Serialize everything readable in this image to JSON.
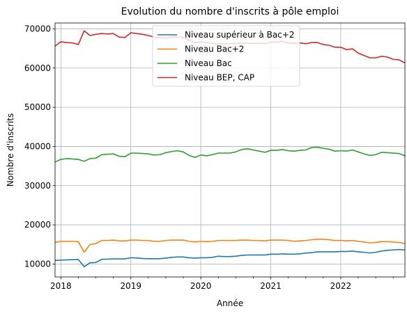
{
  "chart_data": {
    "type": "line",
    "title": "Evolution du nombre d'inscrits à pôle emploi",
    "xlabel": "Année",
    "ylabel": "Nombre d'inscrits",
    "grid": true,
    "legend_position": "top-center",
    "xlim": [
      2017.917,
      2022.917
    ],
    "ylim": [
      6700,
      71500
    ],
    "x_ticks": [
      2018,
      2019,
      2020,
      2021,
      2022
    ],
    "x_tick_labels": [
      "2018",
      "2019",
      "2020",
      "2021",
      "2022"
    ],
    "y_ticks": [
      10000,
      20000,
      30000,
      40000,
      50000,
      60000,
      70000
    ],
    "y_tick_labels": [
      "10000",
      "20000",
      "30000",
      "40000",
      "50000",
      "60000",
      "70000"
    ],
    "x": [
      2017.917,
      2018.0,
      2018.083,
      2018.167,
      2018.25,
      2018.333,
      2018.417,
      2018.5,
      2018.583,
      2018.667,
      2018.75,
      2018.833,
      2018.917,
      2019.0,
      2019.083,
      2019.167,
      2019.25,
      2019.333,
      2019.417,
      2019.5,
      2019.583,
      2019.667,
      2019.75,
      2019.833,
      2019.917,
      2020.0,
      2020.083,
      2020.167,
      2020.25,
      2020.333,
      2020.417,
      2020.5,
      2020.583,
      2020.667,
      2020.75,
      2020.833,
      2020.917,
      2021.0,
      2021.083,
      2021.167,
      2021.25,
      2021.333,
      2021.417,
      2021.5,
      2021.583,
      2021.667,
      2021.75,
      2021.833,
      2021.917,
      2022.0,
      2022.083,
      2022.167,
      2022.25,
      2022.333,
      2022.417,
      2022.5,
      2022.583,
      2022.667,
      2022.75,
      2022.833,
      2022.917
    ],
    "series": [
      {
        "name": "Niveau supérieur à Bac+2",
        "color": "#1f77b4",
        "values": [
          10900,
          11000,
          11050,
          11100,
          11150,
          9300,
          10300,
          10400,
          11200,
          11250,
          11300,
          11300,
          11300,
          11600,
          11550,
          11400,
          11350,
          11350,
          11350,
          11500,
          11700,
          11800,
          11800,
          11600,
          11500,
          11600,
          11600,
          11700,
          12000,
          11900,
          11900,
          12000,
          12200,
          12300,
          12300,
          12300,
          12300,
          12500,
          12500,
          12600,
          12500,
          12500,
          12600,
          12800,
          12900,
          13100,
          13100,
          13100,
          13100,
          13200,
          13200,
          13300,
          13100,
          13000,
          12800,
          13000,
          13300,
          13500,
          13600,
          13700,
          13600
        ]
      },
      {
        "name": "Niveau Bac+2",
        "color": "#ff7f0e",
        "values": [
          15500,
          15800,
          15800,
          15800,
          15700,
          13000,
          15000,
          15200,
          16000,
          16000,
          16100,
          15900,
          15900,
          16100,
          16100,
          16000,
          16000,
          15800,
          15800,
          16000,
          16100,
          16100,
          16100,
          15800,
          15600,
          15800,
          15700,
          15800,
          16000,
          16000,
          16000,
          16000,
          16100,
          16100,
          16000,
          16000,
          15900,
          16100,
          16100,
          16100,
          16000,
          15800,
          15900,
          16000,
          16200,
          16300,
          16300,
          16200,
          16000,
          16000,
          15900,
          16000,
          15800,
          15600,
          15400,
          15500,
          15700,
          15700,
          15600,
          15500,
          15200
        ]
      },
      {
        "name": "Niveau Bac",
        "color": "#2ca02c",
        "values": [
          36000,
          36700,
          36900,
          36800,
          36700,
          36200,
          36900,
          37000,
          37900,
          38000,
          38100,
          37500,
          37400,
          38300,
          38300,
          38200,
          38100,
          37800,
          37900,
          38400,
          38700,
          38900,
          38600,
          37700,
          37200,
          37800,
          37600,
          37900,
          38300,
          38300,
          38300,
          38600,
          39200,
          39400,
          39100,
          38800,
          38500,
          39000,
          39000,
          39200,
          38900,
          38800,
          39000,
          39100,
          39700,
          39800,
          39500,
          39300,
          38800,
          38900,
          38800,
          39100,
          38600,
          38100,
          37700,
          37900,
          38500,
          38400,
          38300,
          38200,
          37600
        ]
      },
      {
        "name": "Niveau BEP, CAP",
        "color": "#d62728",
        "values": [
          65600,
          66700,
          66500,
          66400,
          66000,
          69500,
          68300,
          68600,
          68800,
          68700,
          68800,
          67900,
          67800,
          69000,
          68800,
          68600,
          68300,
          67900,
          67800,
          67700,
          67900,
          67900,
          67800,
          67100,
          66500,
          66700,
          66500,
          66300,
          66200,
          66100,
          66200,
          66300,
          66400,
          66300,
          66300,
          66300,
          66200,
          66600,
          66600,
          66800,
          66400,
          66300,
          66400,
          66200,
          66500,
          66500,
          66000,
          65800,
          65300,
          65300,
          64700,
          64900,
          63800,
          63200,
          62600,
          62600,
          63000,
          62800,
          62200,
          62100,
          61300
        ]
      }
    ]
  }
}
